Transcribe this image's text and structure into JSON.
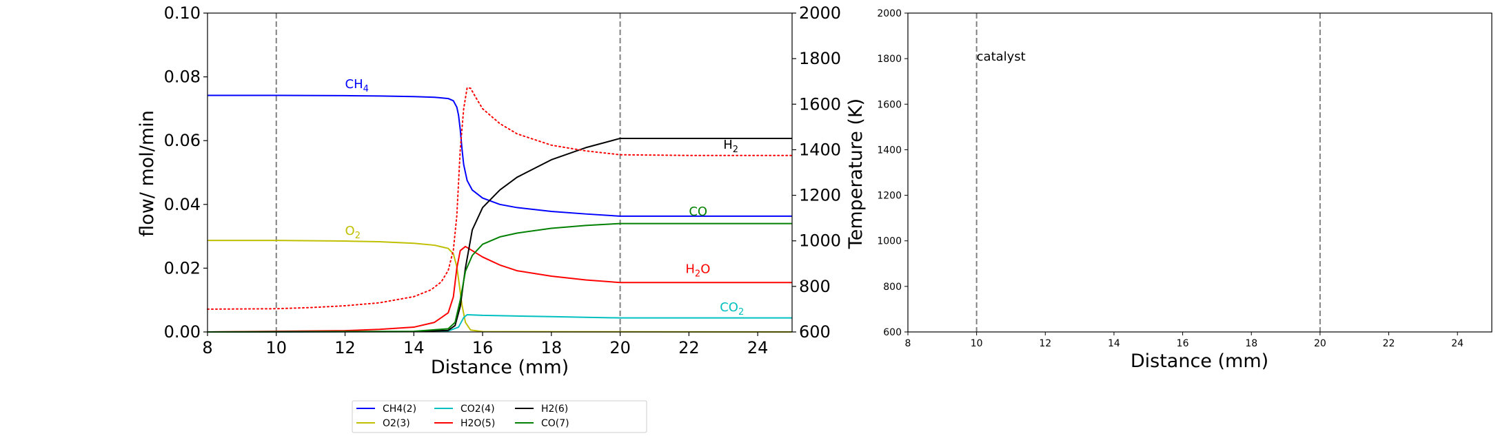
{
  "chart_data": [
    {
      "type": "line",
      "xlabel": "Distance (mm)",
      "ylabel": "flow/ mol/min",
      "y2label": "Temperature (K)",
      "xlim": [
        8,
        25
      ],
      "ylim": [
        0,
        0.1
      ],
      "y2lim": [
        600,
        2000
      ],
      "xticks": [
        "8",
        "10",
        "12",
        "14",
        "16",
        "18",
        "20",
        "22",
        "24"
      ],
      "yticks": [
        "0.00",
        "0.02",
        "0.04",
        "0.06",
        "0.08",
        "0.10"
      ],
      "y2ticks": [
        "600",
        "800",
        "1000",
        "1200",
        "1400",
        "1600",
        "1800",
        "2000"
      ],
      "vlines": [
        10,
        20
      ],
      "labels": {
        "ch4": {
          "base": "CH",
          "sub": "4",
          "x": 12.0,
          "y": 0.0765
        },
        "o2": {
          "base": "O",
          "sub": "2",
          "x": 12.0,
          "y": 0.0305
        },
        "h2": {
          "base": "H",
          "sub": "2",
          "x": 23.0,
          "y": 0.0575
        },
        "co": {
          "base": "CO",
          "sub": "",
          "x": 22.0,
          "y": 0.0365
        },
        "h2o": {
          "base": "H",
          "sub": "2",
          "tail": "O",
          "x": 21.9,
          "y": 0.0185
        },
        "co2": {
          "base": "CO",
          "sub": "2",
          "x": 22.9,
          "y": 0.0065
        }
      },
      "series": [
        {
          "name": "CH4(2)",
          "color": "#0000ff",
          "points": [
            [
              8,
              0.0742
            ],
            [
              10,
              0.0742
            ],
            [
              12,
              0.0741
            ],
            [
              13,
              0.074
            ],
            [
              14,
              0.0738
            ],
            [
              14.6,
              0.0736
            ],
            [
              15,
              0.0732
            ],
            [
              15.15,
              0.0725
            ],
            [
              15.25,
              0.0705
            ],
            [
              15.3,
              0.068
            ],
            [
              15.35,
              0.0635
            ],
            [
              15.4,
              0.0575
            ],
            [
              15.45,
              0.0525
            ],
            [
              15.55,
              0.0475
            ],
            [
              15.7,
              0.0445
            ],
            [
              16,
              0.042
            ],
            [
              16.5,
              0.04
            ],
            [
              17,
              0.039
            ],
            [
              18,
              0.0378
            ],
            [
              19,
              0.037
            ],
            [
              20,
              0.0363
            ],
            [
              22,
              0.0363
            ],
            [
              25,
              0.0363
            ]
          ]
        },
        {
          "name": "O2(3)",
          "color": "#bfbf00",
          "points": [
            [
              8,
              0.0287
            ],
            [
              10,
              0.0287
            ],
            [
              12,
              0.0285
            ],
            [
              13,
              0.0283
            ],
            [
              14,
              0.0278
            ],
            [
              14.6,
              0.0272
            ],
            [
              15,
              0.0262
            ],
            [
              15.15,
              0.0245
            ],
            [
              15.25,
              0.0205
            ],
            [
              15.32,
              0.015
            ],
            [
              15.4,
              0.0085
            ],
            [
              15.5,
              0.003
            ],
            [
              15.65,
              0.0006
            ],
            [
              16,
              0.0001
            ],
            [
              25,
              0.0
            ]
          ]
        },
        {
          "name": "CO2(4)",
          "color": "#00bfbf",
          "points": [
            [
              8,
              0.0
            ],
            [
              14,
              0.0001
            ],
            [
              15,
              0.0003
            ],
            [
              15.3,
              0.0015
            ],
            [
              15.45,
              0.0045
            ],
            [
              15.55,
              0.0054
            ],
            [
              16,
              0.0052
            ],
            [
              17,
              0.005
            ],
            [
              18,
              0.0048
            ],
            [
              19,
              0.0046
            ],
            [
              20,
              0.0044
            ],
            [
              22,
              0.0044
            ],
            [
              25,
              0.0044
            ]
          ]
        },
        {
          "name": "H2O(5)",
          "color": "#ff0000",
          "points": [
            [
              8,
              0.0
            ],
            [
              12,
              0.0004
            ],
            [
              13,
              0.0008
            ],
            [
              14,
              0.0015
            ],
            [
              14.6,
              0.003
            ],
            [
              15,
              0.006
            ],
            [
              15.15,
              0.011
            ],
            [
              15.25,
              0.02
            ],
            [
              15.35,
              0.0255
            ],
            [
              15.5,
              0.0268
            ],
            [
              15.7,
              0.0255
            ],
            [
              16,
              0.0235
            ],
            [
              16.5,
              0.021
            ],
            [
              17,
              0.0192
            ],
            [
              18,
              0.0175
            ],
            [
              19,
              0.0163
            ],
            [
              20,
              0.0155
            ],
            [
              22,
              0.0155
            ],
            [
              25,
              0.0155
            ]
          ]
        },
        {
          "name": "H2(6)",
          "color": "#000000",
          "points": [
            [
              8,
              0.0
            ],
            [
              14,
              0.0001
            ],
            [
              15,
              0.0005
            ],
            [
              15.2,
              0.002
            ],
            [
              15.35,
              0.008
            ],
            [
              15.5,
              0.02
            ],
            [
              15.7,
              0.032
            ],
            [
              16,
              0.039
            ],
            [
              16.5,
              0.0445
            ],
            [
              17,
              0.0485
            ],
            [
              18,
              0.054
            ],
            [
              19,
              0.0578
            ],
            [
              20,
              0.0607
            ],
            [
              22,
              0.0607
            ],
            [
              25,
              0.0607
            ]
          ]
        },
        {
          "name": "CO(7)",
          "color": "#008000",
          "points": [
            [
              8,
              0.0
            ],
            [
              14,
              0.0002
            ],
            [
              15,
              0.001
            ],
            [
              15.2,
              0.003
            ],
            [
              15.35,
              0.01
            ],
            [
              15.5,
              0.019
            ],
            [
              15.7,
              0.024
            ],
            [
              16,
              0.0275
            ],
            [
              16.5,
              0.0298
            ],
            [
              17,
              0.031
            ],
            [
              18,
              0.0325
            ],
            [
              19,
              0.0334
            ],
            [
              20,
              0.034
            ],
            [
              22,
              0.034
            ],
            [
              25,
              0.034
            ]
          ]
        }
      ],
      "temperature": {
        "color": "#ff0000",
        "style": "dotted",
        "points": [
          [
            8,
            700
          ],
          [
            10,
            702
          ],
          [
            11,
            707
          ],
          [
            12,
            715
          ],
          [
            13,
            728
          ],
          [
            14,
            755
          ],
          [
            14.5,
            785
          ],
          [
            14.8,
            820
          ],
          [
            15,
            870
          ],
          [
            15.15,
            960
          ],
          [
            15.25,
            1110
          ],
          [
            15.35,
            1400
          ],
          [
            15.45,
            1580
          ],
          [
            15.55,
            1672
          ],
          [
            15.65,
            1670
          ],
          [
            15.8,
            1630
          ],
          [
            16,
            1580
          ],
          [
            16.5,
            1515
          ],
          [
            17,
            1470
          ],
          [
            18,
            1420
          ],
          [
            19,
            1395
          ],
          [
            20,
            1378
          ],
          [
            22,
            1375
          ],
          [
            25,
            1375
          ]
        ]
      },
      "legend": {
        "placement": "bottom",
        "entries": [
          {
            "label": "CH4(2)",
            "color": "#0000ff"
          },
          {
            "label": "O2(3)",
            "color": "#bfbf00"
          },
          {
            "label": "CO2(4)",
            "color": "#00bfbf"
          },
          {
            "label": "H2O(5)",
            "color": "#ff0000"
          },
          {
            "label": "H2(6)",
            "color": "#000000"
          },
          {
            "label": "CO(7)",
            "color": "#008000"
          }
        ]
      }
    },
    {
      "type": "line",
      "xlabel": "Distance (mm)",
      "xlim": [
        8,
        25
      ],
      "ylim": [
        600,
        2000
      ],
      "xticks": [
        "8",
        "10",
        "12",
        "14",
        "16",
        "18",
        "20",
        "22",
        "24"
      ],
      "yticks": [
        "600",
        "800",
        "1000",
        "1200",
        "1400",
        "1600",
        "1800",
        "2000"
      ],
      "vlines": [
        10,
        20
      ],
      "annotation": {
        "text": "catalyst",
        "x": 10,
        "y": 1810
      },
      "series": []
    }
  ]
}
